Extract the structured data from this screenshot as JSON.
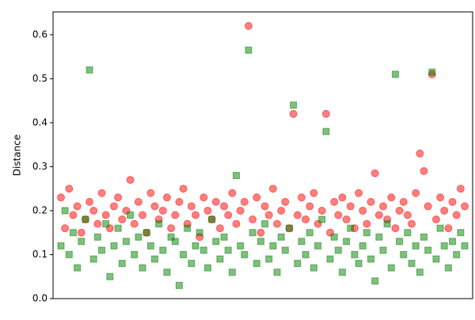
{
  "chart_data": {
    "type": "scatter",
    "ylabel": "Distance",
    "ylim": [
      0,
      0.652
    ],
    "yticks": [
      {
        "value": 0,
        "label": "0.0"
      },
      0.1,
      0.2,
      0.3,
      0.4,
      0.5,
      0.6
    ],
    "series": [
      {
        "color": "#ff0000",
        "marker": "circle",
        "values": [
          0.23,
          0.16,
          0.25,
          0.19,
          0.21,
          0.15,
          0.18,
          0.22,
          0.2,
          0.17,
          0.24,
          0.19,
          0.16,
          0.21,
          0.23,
          0.18,
          0.2,
          0.27,
          0.17,
          0.22,
          0.19,
          0.15,
          0.24,
          0.21,
          0.18,
          0.2,
          0.23,
          0.16,
          0.19,
          0.22,
          0.25,
          0.17,
          0.21,
          0.19,
          0.14,
          0.23,
          0.2,
          0.18,
          0.22,
          0.16,
          0.21,
          0.19,
          0.24,
          0.17,
          0.2,
          0.22,
          0.62,
          0.18,
          0.23,
          0.15,
          0.21,
          0.19,
          0.25,
          0.17,
          0.2,
          0.22,
          0.16,
          0.42,
          0.19,
          0.23,
          0.18,
          0.21,
          0.24,
          0.17,
          0.2,
          0.42,
          0.15,
          0.22,
          0.19,
          0.23,
          0.18,
          0.21,
          0.16,
          0.24,
          0.2,
          0.17,
          0.22,
          0.285,
          0.19,
          0.21,
          0.18,
          0.23,
          0.16,
          0.2,
          0.22,
          0.19,
          0.17,
          0.24,
          0.33,
          0.29,
          0.21,
          0.51,
          0.18,
          0.23,
          0.2,
          0.16,
          0.22,
          0.19,
          0.25,
          0.21
        ]
      },
      {
        "color": "#008000",
        "marker": "square",
        "values": [
          0.12,
          0.2,
          0.1,
          0.15,
          0.07,
          0.13,
          0.18,
          0.52,
          0.09,
          0.14,
          0.11,
          0.17,
          0.05,
          0.12,
          0.16,
          0.08,
          0.13,
          0.19,
          0.1,
          0.14,
          0.07,
          0.15,
          0.12,
          0.09,
          0.17,
          0.11,
          0.06,
          0.14,
          0.13,
          0.03,
          0.1,
          0.16,
          0.08,
          0.12,
          0.15,
          0.11,
          0.07,
          0.18,
          0.13,
          0.09,
          0.14,
          0.11,
          0.06,
          0.28,
          0.12,
          0.1,
          0.565,
          0.15,
          0.08,
          0.13,
          0.17,
          0.09,
          0.12,
          0.06,
          0.14,
          0.11,
          0.16,
          0.44,
          0.08,
          0.13,
          0.1,
          0.15,
          0.07,
          0.12,
          0.18,
          0.38,
          0.09,
          0.14,
          0.11,
          0.06,
          0.13,
          0.16,
          0.1,
          0.08,
          0.12,
          0.15,
          0.09,
          0.04,
          0.14,
          0.11,
          0.17,
          0.07,
          0.51,
          0.13,
          0.1,
          0.15,
          0.08,
          0.12,
          0.06,
          0.14,
          0.11,
          0.515,
          0.09,
          0.16,
          0.12,
          0.07,
          0.13,
          0.1,
          0.15,
          0.12
        ]
      }
    ]
  }
}
